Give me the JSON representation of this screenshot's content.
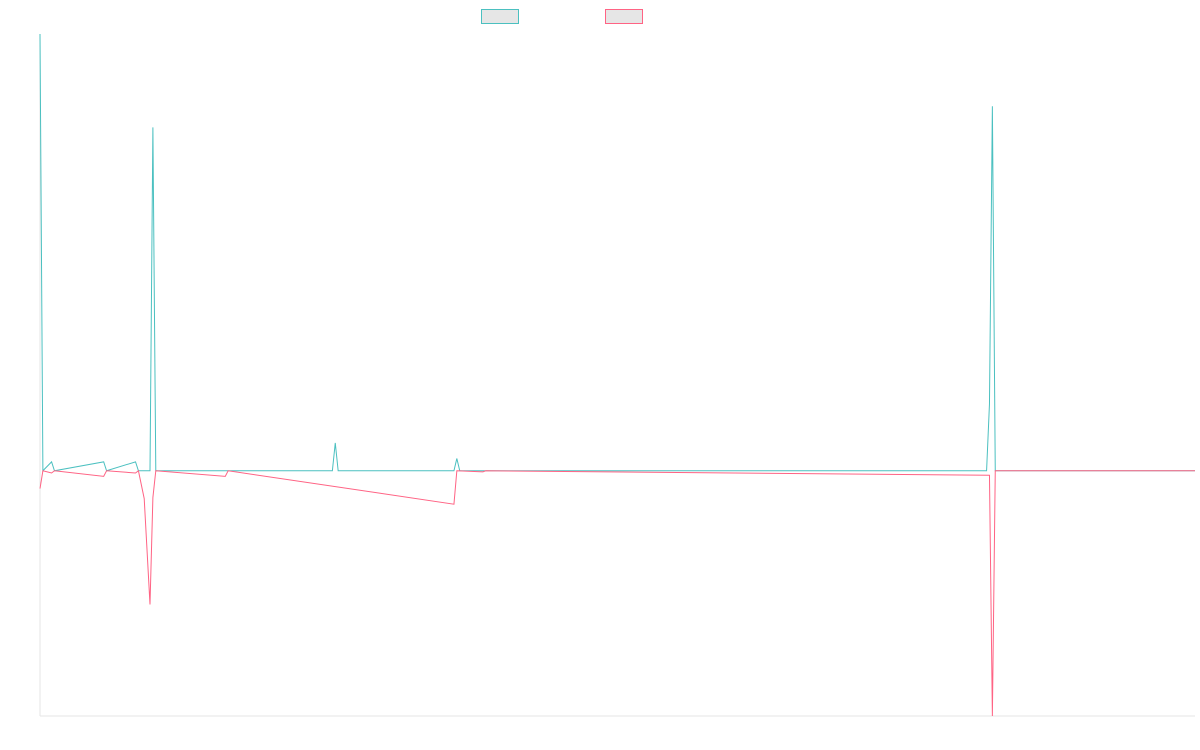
{
  "chart_data": {
    "type": "line",
    "title": "",
    "xlabel": "",
    "ylabel": "",
    "grid": false,
    "legend_position": "top-center",
    "ylim": [
      -2200,
      3900
    ],
    "x_count": 400,
    "series": [
      {
        "name": "",
        "color": "#4bc0c0",
        "points": [
          [
            0,
            3980
          ],
          [
            1,
            0
          ],
          [
            4,
            80
          ],
          [
            5,
            0
          ],
          [
            22,
            80
          ],
          [
            23,
            0
          ],
          [
            33,
            80
          ],
          [
            34,
            0
          ],
          [
            36,
            0
          ],
          [
            38,
            0
          ],
          [
            39,
            3080
          ],
          [
            40,
            0
          ],
          [
            64,
            0
          ],
          [
            101,
            0
          ],
          [
            102,
            250
          ],
          [
            103,
            0
          ],
          [
            143,
            0
          ],
          [
            144,
            110
          ],
          [
            145,
            0
          ],
          [
            153,
            0
          ],
          [
            154,
            0
          ],
          [
            327,
            0
          ],
          [
            328,
            600
          ],
          [
            329,
            3270
          ],
          [
            330,
            0
          ],
          [
            399,
            0
          ]
        ]
      },
      {
        "name": "",
        "color": "#ff6384",
        "points": [
          [
            0,
            -160
          ],
          [
            1,
            0
          ],
          [
            4,
            -20
          ],
          [
            5,
            0
          ],
          [
            22,
            -50
          ],
          [
            23,
            0
          ],
          [
            33,
            -20
          ],
          [
            34,
            0
          ],
          [
            36,
            -250
          ],
          [
            38,
            -1200
          ],
          [
            39,
            -240
          ],
          [
            40,
            0
          ],
          [
            64,
            -50
          ],
          [
            65,
            0
          ],
          [
            143,
            -300
          ],
          [
            144,
            0
          ],
          [
            153,
            -10
          ],
          [
            154,
            0
          ],
          [
            328,
            -40
          ],
          [
            329,
            -2210
          ],
          [
            330,
            0
          ],
          [
            399,
            0
          ]
        ]
      }
    ]
  }
}
